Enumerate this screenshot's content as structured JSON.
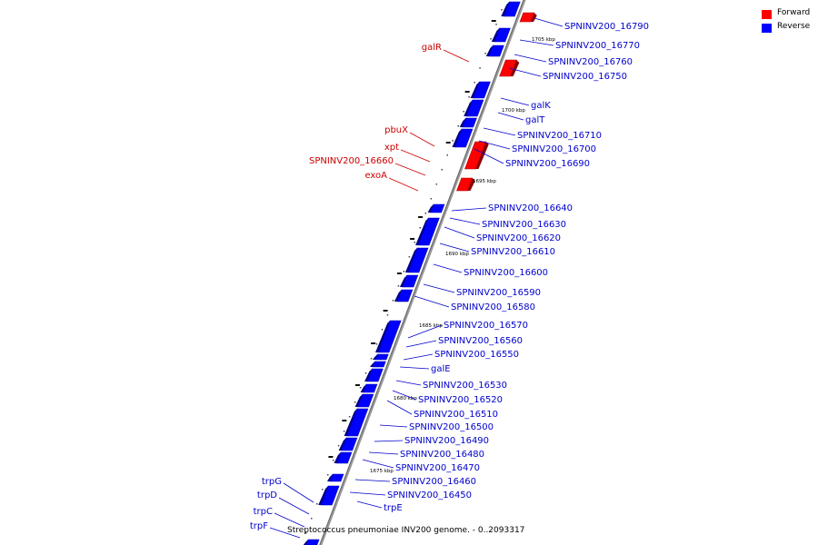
{
  "colors": {
    "forward": "#ff0000",
    "reverse": "#0000ff",
    "backbone": "#888888",
    "forward_label": "#cc0000",
    "reverse_label": "#0000cc"
  },
  "legend": [
    {
      "label": "Forward",
      "color": "#ff0000"
    },
    {
      "label": "Reverse",
      "color": "#0000ff"
    }
  ],
  "caption": "Streptococcus pneumoniae INV200 genome. - 0..2093317",
  "ticks": [
    "1705 kbp",
    "1700 kbp",
    "1695 kbp",
    "1690 kbp",
    "1685 kbp",
    "1680 kbp",
    "1675 kbp"
  ],
  "forward_genes": [
    "galR",
    "pbuX",
    "xpt",
    "SPNINV200_16660",
    "exoA"
  ],
  "reverse_genes": [
    "SPNINV200_16790",
    "SPNINV200_16770",
    "SPNINV200_16760",
    "SPNINV200_16750",
    "galK",
    "galT",
    "SPNINV200_16710",
    "SPNINV200_16700",
    "SPNINV200_16690",
    "SPNINV200_16640",
    "SPNINV200_16630",
    "SPNINV200_16620",
    "SPNINV200_16610",
    "SPNINV200_16600",
    "SPNINV200_16590",
    "SPNINV200_16580",
    "SPNINV200_16570",
    "SPNINV200_16560",
    "SPNINV200_16550",
    "galE",
    "SPNINV200_16530",
    "SPNINV200_16520",
    "SPNINV200_16510",
    "SPNINV200_16500",
    "SPNINV200_16490",
    "SPNINV200_16480",
    "SPNINV200_16470",
    "SPNINV200_16460",
    "SPNINV200_16450",
    "trpE"
  ],
  "left_genes": [
    "trpG",
    "trpD",
    "trpC",
    "trpF"
  ]
}
